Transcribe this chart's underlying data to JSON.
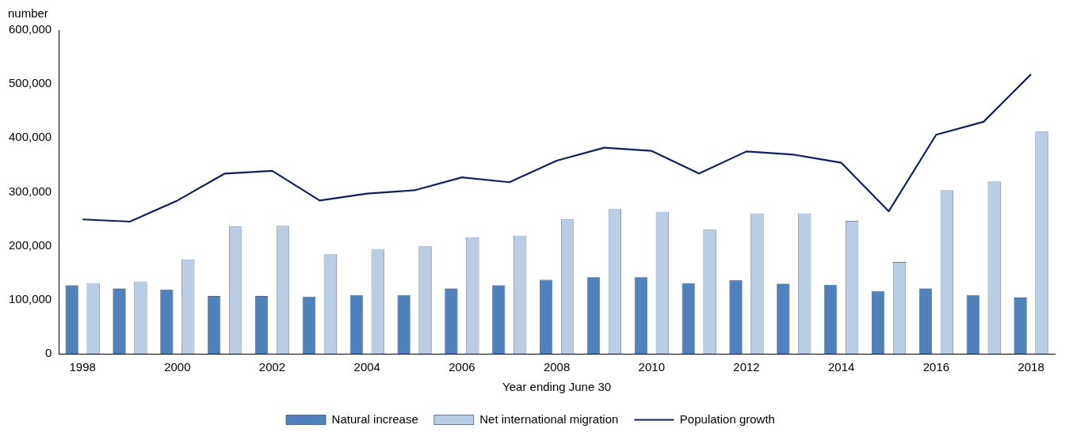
{
  "chart_data": {
    "type": "bar",
    "ylabel": "number",
    "xlabel": "Year ending June 30",
    "categories": [
      "1998",
      null,
      "2000",
      null,
      "2002",
      null,
      "2004",
      null,
      "2006",
      null,
      "2008",
      null,
      "2010",
      null,
      "2012",
      null,
      "2014",
      null,
      "2016",
      null,
      "2018"
    ],
    "series": [
      {
        "name": "Natural increase",
        "color": "#4f81bd",
        "values": [
          127000,
          121000,
          119000,
          107000,
          107000,
          106000,
          109000,
          109000,
          121000,
          127000,
          137000,
          142000,
          142000,
          131000,
          136000,
          130000,
          128000,
          116000,
          121000,
          109000,
          104000
        ]
      },
      {
        "name": "Net international migration",
        "color": "#b9cde5",
        "values": [
          131000,
          134000,
          175000,
          236000,
          237000,
          184000,
          194000,
          200000,
          216000,
          219000,
          249000,
          269000,
          263000,
          230000,
          260000,
          260000,
          246000,
          170000,
          303000,
          319000,
          412000
        ]
      },
      {
        "name": "Population growth",
        "type": "line",
        "color": "#0d2160",
        "values": [
          249000,
          245000,
          284000,
          334000,
          339000,
          284000,
          297000,
          303000,
          327000,
          318000,
          358000,
          382000,
          376000,
          334000,
          375000,
          369000,
          354000,
          264000,
          406000,
          430000,
          518000
        ]
      }
    ],
    "ylim": [
      0,
      600000
    ],
    "yticks": [
      0,
      {
        "value": 100000,
        "label": "100,000"
      },
      {
        "value": 200000,
        "label": "200,000"
      },
      {
        "value": 300000,
        "label": "300,000"
      },
      {
        "value": 400000,
        "label": "400,000"
      },
      {
        "value": 500000,
        "label": "500,000"
      },
      {
        "value": 600000,
        "label": "600,000"
      }
    ],
    "grid": false,
    "legend": "bottom",
    "marker": "none"
  }
}
